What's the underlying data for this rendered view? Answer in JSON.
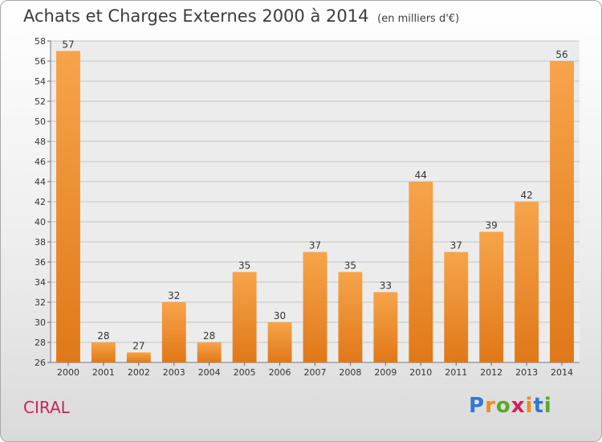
{
  "page": {
    "title": "Achats et Charges Externes 2000 à 2014",
    "unit_note": "(en milliers d'€)",
    "commune": "CIRAL",
    "logo_text": "Proxiti"
  },
  "colors": {
    "bar_top": "#f7a44a",
    "bar_bottom": "#e07818",
    "commune": "#d0205a",
    "logo": [
      "#2b7bd1",
      "#f08a1e",
      "#5aa82a",
      "#d0205a",
      "#f08a1e",
      "#2b7bd1",
      "#5aa82a"
    ]
  },
  "chart_data": {
    "type": "bar",
    "title": "Achats et Charges Externes 2000 à 2014",
    "categories": [
      "2000",
      "2001",
      "2002",
      "2003",
      "2004",
      "2005",
      "2006",
      "2007",
      "2008",
      "2009",
      "2010",
      "2011",
      "2012",
      "2013",
      "2014"
    ],
    "values": [
      57,
      28,
      27,
      32,
      28,
      35,
      30,
      37,
      35,
      33,
      44,
      37,
      39,
      42,
      56
    ],
    "ylim": [
      26,
      58
    ],
    "yticks": [
      26,
      28,
      30,
      32,
      34,
      36,
      38,
      40,
      42,
      44,
      46,
      48,
      50,
      52,
      54,
      56,
      58
    ],
    "grid": true,
    "xlabel": "",
    "ylabel": ""
  }
}
